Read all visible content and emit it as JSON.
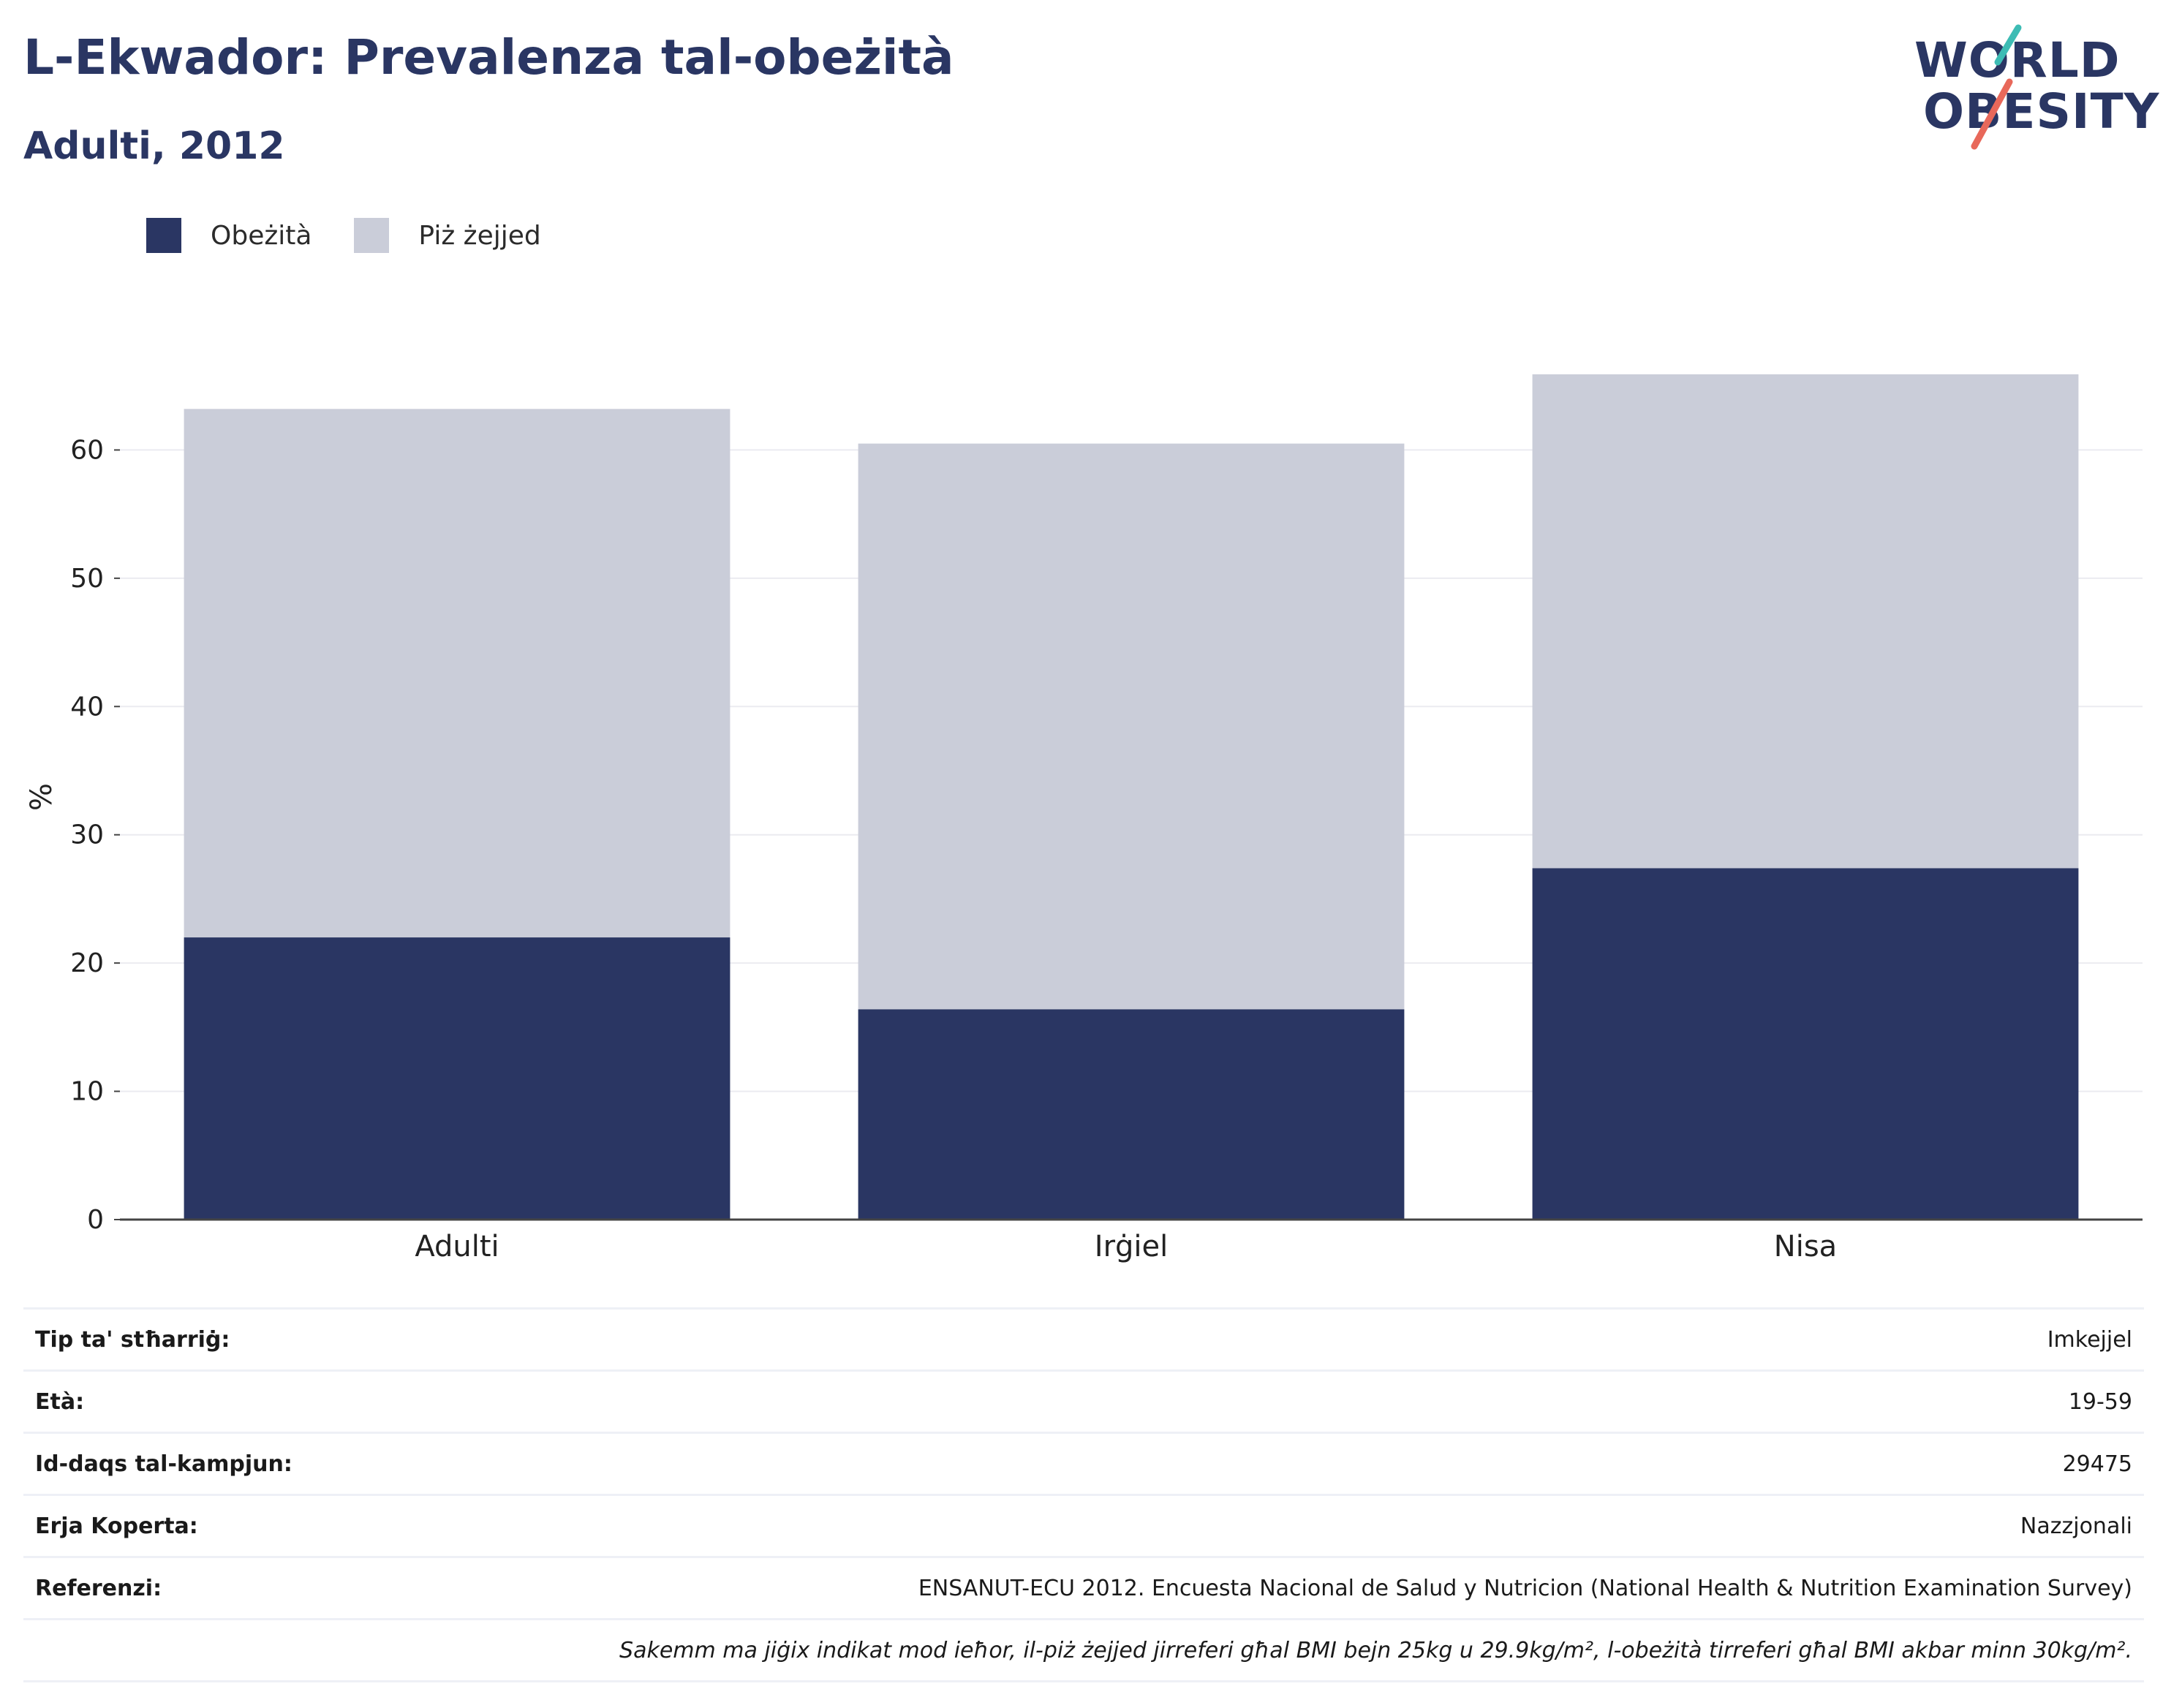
{
  "header": {
    "title": "L-Ekwador: Prevalenza tal-obeżità",
    "subtitle": "Adulti, 2012"
  },
  "logo": {
    "line1": "WORLD",
    "line2": "OBESITY",
    "accent_teal": "#3dbcb4",
    "accent_coral": "#e8685a"
  },
  "colors": {
    "obesity": "#2a3663",
    "overweight": "#cacdd9",
    "text": "#2a3663"
  },
  "chart_data": {
    "type": "bar",
    "stacked": true,
    "categories": [
      "Adulti",
      "Irġiel",
      "Nisa"
    ],
    "series": [
      {
        "name": "Obeżità",
        "values": [
          22.0,
          16.4,
          27.4
        ]
      },
      {
        "name": "Piż żejjed",
        "values": [
          41.2,
          44.1,
          38.5
        ]
      }
    ],
    "ylabel": "%",
    "ylim": [
      0,
      70
    ],
    "yticks": [
      "0",
      "10",
      "20",
      "30",
      "40",
      "50",
      "60"
    ],
    "ytick_values": [
      0,
      10,
      20,
      30,
      40,
      50,
      60
    ],
    "grid": true,
    "legend_position": "top-left"
  },
  "info": {
    "rows": [
      {
        "label": "Tip ta' stħarriġ:",
        "value": "Imkejjel"
      },
      {
        "label": "Età:",
        "value": "19-59"
      },
      {
        "label": "Id-daqs tal-kampjun:",
        "value": "29475"
      },
      {
        "label": "Erja Koperta:",
        "value": "Nazzjonali"
      },
      {
        "label": "Referenzi:",
        "value": "ENSANUT-ECU 2012. Encuesta Nacional de Salud y Nutricion (National Health & Nutrition Examination Survey)"
      }
    ],
    "note": "Sakemm ma jiġix indikat mod ieħor, il-piż żejjed jirreferi għal BMI bejn 25kg u 29.9kg/m², l-obeżità tirreferi għal BMI akbar minn 30kg/m²."
  }
}
